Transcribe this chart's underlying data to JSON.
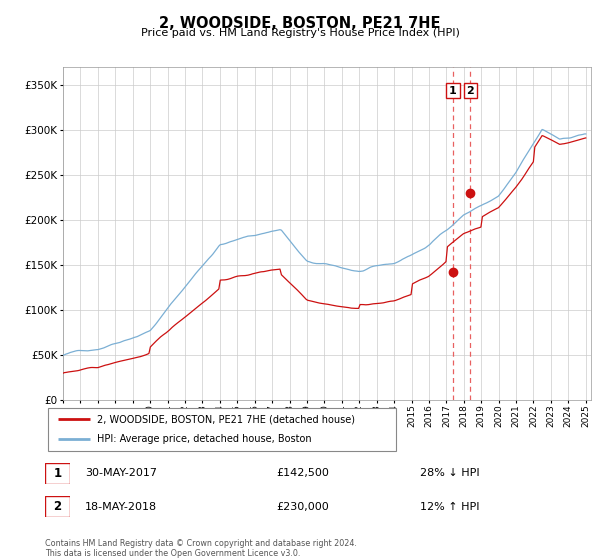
{
  "title": "2, WOODSIDE, BOSTON, PE21 7HE",
  "subtitle": "Price paid vs. HM Land Registry's House Price Index (HPI)",
  "legend_line1": "2, WOODSIDE, BOSTON, PE21 7HE (detached house)",
  "legend_line2": "HPI: Average price, detached house, Boston",
  "transaction1_date": "30-MAY-2017",
  "transaction1_price": "£142,500",
  "transaction1_hpi": "28% ↓ HPI",
  "transaction2_date": "18-MAY-2018",
  "transaction2_price": "£230,000",
  "transaction2_hpi": "12% ↑ HPI",
  "footer": "Contains HM Land Registry data © Crown copyright and database right 2024.\nThis data is licensed under the Open Government Licence v3.0.",
  "hpi_color": "#7bafd4",
  "price_color": "#cc1111",
  "vline_color": "#e86060",
  "ylim": [
    0,
    370000
  ],
  "yticks": [
    0,
    50000,
    100000,
    150000,
    200000,
    250000,
    300000,
    350000
  ],
  "year_start": 1995,
  "year_end": 2025,
  "transaction1_year": 2017.38,
  "transaction2_year": 2018.38,
  "transaction1_value": 142500,
  "transaction2_value": 230000
}
